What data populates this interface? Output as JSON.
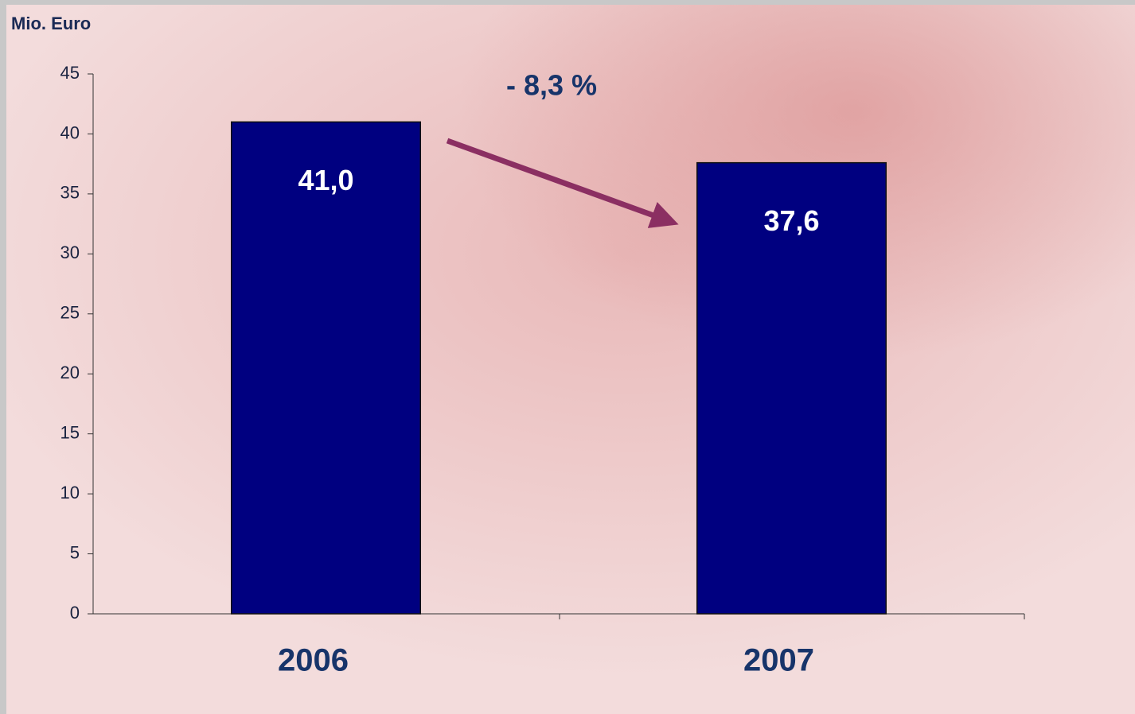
{
  "chart_data": {
    "type": "bar",
    "y_axis_label": "Mio. Euro",
    "annotation": "- 8,3 %",
    "categories": [
      "2006",
      "2007"
    ],
    "values": [
      41.0,
      37.6
    ],
    "value_labels": [
      "41,0",
      "37,6"
    ],
    "color": "#000080",
    "ylim": [
      0,
      45
    ],
    "yticks": [
      0,
      5,
      10,
      15,
      20,
      25,
      30,
      35,
      40,
      45
    ],
    "grid": false
  }
}
